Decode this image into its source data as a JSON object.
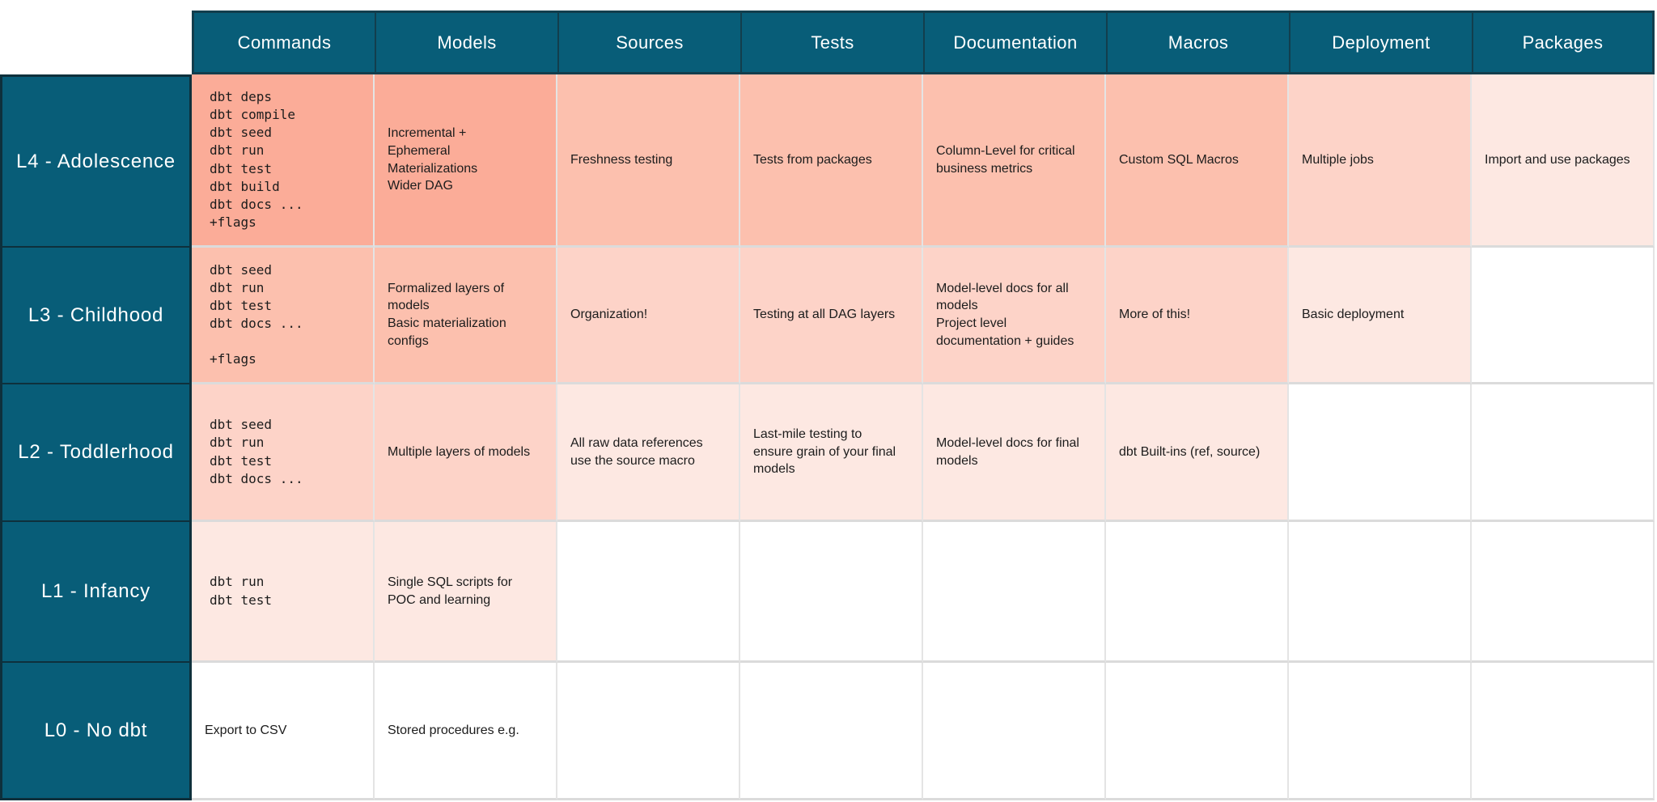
{
  "colors": {
    "teal": "#085d78",
    "tealBorder": "#123e4d",
    "rowBorder": "#0e303c",
    "gridLineV": "#e4e4e4",
    "gridLineH": "#dbdbdb",
    "cellText": "#1c1c1c",
    "headerText": "#ffffff"
  },
  "palette": {
    "s4": "#fbac98",
    "s3": "#fcc0ae",
    "s2": "#fdd3c8",
    "s1": "#fde8e2",
    "none": "#ffffff"
  },
  "table": {
    "columns": [
      "Commands",
      "Models",
      "Sources",
      "Tests",
      "Documentation",
      "Macros",
      "Deployment",
      "Packages"
    ],
    "rows": [
      {
        "label": "L4 - Adolescence",
        "cells": [
          {
            "text": "dbt deps\ndbt compile\ndbt seed\ndbt run\ndbt test\ndbt build\ndbt docs ...\n+flags",
            "shade": "s4",
            "mono": true
          },
          {
            "text": "Incremental +\nEphemeral\nMaterializations\nWider DAG",
            "shade": "s4"
          },
          {
            "text": "Freshness testing",
            "shade": "s3"
          },
          {
            "text": "Tests from packages",
            "shade": "s3"
          },
          {
            "text": "Column-Level for critical\nbusiness metrics",
            "shade": "s3"
          },
          {
            "text": "Custom SQL Macros",
            "shade": "s3"
          },
          {
            "text": "Multiple jobs",
            "shade": "s2"
          },
          {
            "text": "Import and use packages",
            "shade": "s1"
          }
        ]
      },
      {
        "label": "L3 - Childhood",
        "cells": [
          {
            "text": "dbt seed\ndbt run\ndbt test\ndbt docs ...\n\n+flags",
            "shade": "s3",
            "mono": true
          },
          {
            "text": "Formalized layers of\nmodels\nBasic materialization\nconfigs",
            "shade": "s3"
          },
          {
            "text": "Organization!",
            "shade": "s2"
          },
          {
            "text": "Testing at all DAG layers",
            "shade": "s2"
          },
          {
            "text": "Model-level docs for all\nmodels\nProject level\ndocumentation + guides",
            "shade": "s2"
          },
          {
            "text": "More of this!",
            "shade": "s2"
          },
          {
            "text": "Basic deployment",
            "shade": "s1"
          },
          {
            "text": "",
            "shade": "none"
          }
        ]
      },
      {
        "label": "L2 - Toddlerhood",
        "cells": [
          {
            "text": "dbt seed\ndbt run\ndbt test\ndbt docs ...",
            "shade": "s2",
            "mono": true
          },
          {
            "text": "Multiple layers of models",
            "shade": "s2"
          },
          {
            "text": "All raw data references\nuse the source macro",
            "shade": "s1"
          },
          {
            "text": "Last-mile testing to\nensure grain of your final\nmodels",
            "shade": "s1"
          },
          {
            "text": "Model-level docs for final\nmodels",
            "shade": "s1"
          },
          {
            "text": "dbt Built-ins (ref, source)",
            "shade": "s1"
          },
          {
            "text": "",
            "shade": "none"
          },
          {
            "text": "",
            "shade": "none"
          }
        ]
      },
      {
        "label": "L1 - Infancy",
        "cells": [
          {
            "text": "dbt run\ndbt test",
            "shade": "s1",
            "mono": true
          },
          {
            "text": "Single SQL scripts for\nPOC and learning",
            "shade": "s1"
          },
          {
            "text": "",
            "shade": "none"
          },
          {
            "text": "",
            "shade": "none"
          },
          {
            "text": "",
            "shade": "none"
          },
          {
            "text": "",
            "shade": "none"
          },
          {
            "text": "",
            "shade": "none"
          },
          {
            "text": "",
            "shade": "none"
          }
        ]
      },
      {
        "label": "L0 - No dbt",
        "cells": [
          {
            "text": "Export to CSV",
            "shade": "none"
          },
          {
            "text": "Stored procedures e.g.",
            "shade": "none"
          },
          {
            "text": "",
            "shade": "none"
          },
          {
            "text": "",
            "shade": "none"
          },
          {
            "text": "",
            "shade": "none"
          },
          {
            "text": "",
            "shade": "none"
          },
          {
            "text": "",
            "shade": "none"
          },
          {
            "text": "",
            "shade": "none"
          }
        ]
      }
    ]
  },
  "chart_data": {
    "type": "table",
    "columns": [
      "Commands",
      "Models",
      "Sources",
      "Tests",
      "Documentation",
      "Macros",
      "Deployment",
      "Packages"
    ],
    "rows": [
      {
        "label": "L4 - Adolescence",
        "values": [
          "dbt deps dbt compile dbt seed dbt run dbt test dbt build dbt docs ... +flags",
          "Incremental + Ephemeral Materializations Wider DAG",
          "Freshness testing",
          "Tests from packages",
          "Column-Level for critical business metrics",
          "Custom SQL Macros",
          "Multiple jobs",
          "Import and use packages"
        ]
      },
      {
        "label": "L3 - Childhood",
        "values": [
          "dbt seed dbt run dbt test dbt docs ... +flags",
          "Formalized layers of models Basic materialization configs",
          "Organization!",
          "Testing at all DAG layers",
          "Model-level docs for all models Project level documentation + guides",
          "More of this!",
          "Basic deployment",
          ""
        ]
      },
      {
        "label": "L2 - Toddlerhood",
        "values": [
          "dbt seed dbt run dbt test dbt docs ...",
          "Multiple layers of models",
          "All raw data references use the source macro",
          "Last-mile testing to ensure grain of your final models",
          "Model-level docs for final models",
          "dbt Built-ins (ref, source)",
          "",
          ""
        ]
      },
      {
        "label": "L1 - Infancy",
        "values": [
          "dbt run dbt test",
          "Single SQL scripts for POC and learning",
          "",
          "",
          "",
          "",
          "",
          ""
        ]
      },
      {
        "label": "L0 - No dbt",
        "values": [
          "Export to CSV",
          "Stored procedures e.g.",
          "",
          "",
          "",
          "",
          "",
          ""
        ]
      }
    ]
  }
}
